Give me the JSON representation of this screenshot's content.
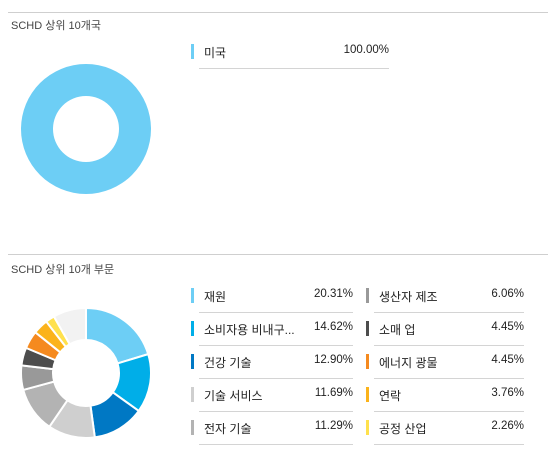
{
  "countries": {
    "title": "SCHD 상위 10개국",
    "items": [
      {
        "label": "미국",
        "value": "100.00%",
        "pct": 100.0,
        "color": "#6dcef5"
      }
    ]
  },
  "sectors": {
    "title": "SCHD 상위 10개 부문",
    "items": [
      {
        "label": "재원",
        "value": "20.31%",
        "pct": 20.31,
        "color": "#6dcef5"
      },
      {
        "label": "소비자용 비내구...",
        "value": "14.62%",
        "pct": 14.62,
        "color": "#00aee8"
      },
      {
        "label": "건강 기술",
        "value": "12.90%",
        "pct": 12.9,
        "color": "#0078c4"
      },
      {
        "label": "기술 서비스",
        "value": "11.69%",
        "pct": 11.69,
        "color": "#cfcfcf"
      },
      {
        "label": "전자 기술",
        "value": "11.29%",
        "pct": 11.29,
        "color": "#b3b3b3"
      },
      {
        "label": "생산자 제조",
        "value": "6.06%",
        "pct": 6.06,
        "color": "#999999"
      },
      {
        "label": "소매 업",
        "value": "4.45%",
        "pct": 4.45,
        "color": "#4d4d4d"
      },
      {
        "label": "에너지 광물",
        "value": "4.45%",
        "pct": 4.45,
        "color": "#f58a1f"
      },
      {
        "label": "연락",
        "value": "3.76%",
        "pct": 3.76,
        "color": "#fbb31b"
      },
      {
        "label": "공정 산업",
        "value": "2.26%",
        "pct": 2.26,
        "color": "#ffe14d"
      }
    ],
    "other_color": "#f2f2f2"
  }
}
